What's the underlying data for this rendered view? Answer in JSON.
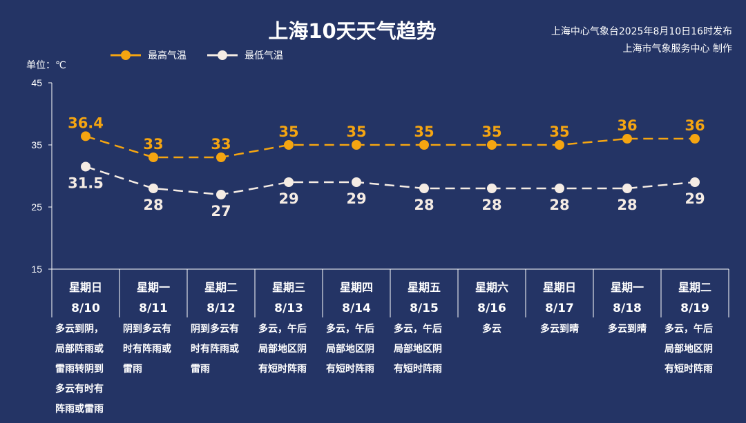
{
  "header": {
    "title": "上海10天天气趋势",
    "publisher": "上海中心气象台2025年8月10日16时发布",
    "producer": "上海市气象服务中心 制作",
    "unit": "单位：℃"
  },
  "colors": {
    "background": "#243465",
    "high": "#f5a511",
    "low": "#f5ece4"
  },
  "chart_data": {
    "type": "line",
    "ylabel": "单位：℃",
    "ylim": [
      15,
      45
    ],
    "yticks": [
      15,
      25,
      35,
      45
    ],
    "legend_position": "top-left",
    "categories": [
      "8/10",
      "8/11",
      "8/12",
      "8/13",
      "8/14",
      "8/15",
      "8/16",
      "8/17",
      "8/18",
      "8/19"
    ],
    "weekdays": [
      "星期日",
      "星期一",
      "星期二",
      "星期三",
      "星期四",
      "星期五",
      "星期六",
      "星期日",
      "星期一",
      "星期二"
    ],
    "series": [
      {
        "name": "最高气温",
        "color": "#f5a511",
        "style": "dashed",
        "values": [
          36.4,
          33,
          33,
          35,
          35,
          35,
          35,
          35,
          36,
          36
        ]
      },
      {
        "name": "最低气温",
        "color": "#f5ece4",
        "style": "dashed",
        "values": [
          31.5,
          28,
          27,
          29,
          29,
          28,
          28,
          28,
          28,
          29
        ]
      }
    ],
    "weather": [
      "多云到阴，局部阵雨或雷雨转阴到多云有时有阵雨或雷雨",
      "阴到多云有时有阵雨或雷雨",
      "阴到多云有时有阵雨或雷雨",
      "多云，午后局部地区阴有短时阵雨",
      "多云，午后局部地区阴有短时阵雨",
      "多云，午后局部地区阴有短时阵雨",
      "多云",
      "多云到晴",
      "多云到晴",
      "多云，午后局部地区阴有短时阵雨"
    ]
  }
}
